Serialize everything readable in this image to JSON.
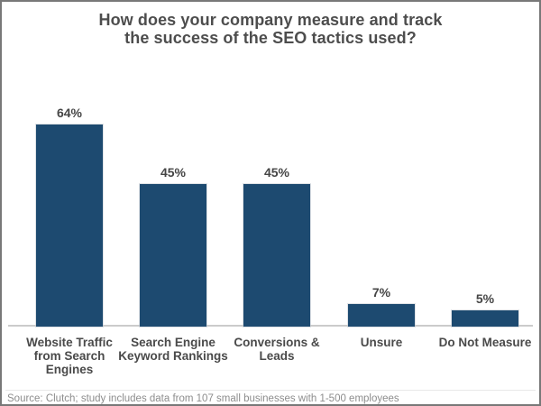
{
  "window": {
    "background_color": "#ffffff",
    "border_color": "#787878"
  },
  "title": {
    "text": "How does your company measure and track\nthe success of the SEO tactics used?",
    "color": "#4d4d4d"
  },
  "chart_data": {
    "type": "bar",
    "title": "How does your company measure and track the success of the SEO tactics used?",
    "categories": [
      "Website Traffic from Search Engines",
      "Search Engine Keyword Rankings",
      "Conversions & Leads",
      "Unsure",
      "Do Not Measure"
    ],
    "category_label_lines": [
      [
        "Website Traffic",
        "from Search",
        "Engines"
      ],
      [
        "Search Engine",
        "Keyword Rankings"
      ],
      [
        "Conversions &",
        "Leads"
      ],
      [
        "Unsure"
      ],
      [
        "Do Not Measure"
      ]
    ],
    "values": [
      64,
      45,
      45,
      7,
      5
    ],
    "value_labels": [
      "64%",
      "45%",
      "45%",
      "7%",
      "5%"
    ],
    "unit": "%",
    "xlabel": "",
    "ylabel": "",
    "ylim": [
      0,
      70
    ],
    "grid": false,
    "legend": false,
    "bar_color": "#1d4a70",
    "axis_line_color": "#cbcbcb",
    "label_color": "#4a4a4a"
  },
  "source_note": "Source: Clutch; study includes data from 107 small businesses with 1-500 employees"
}
